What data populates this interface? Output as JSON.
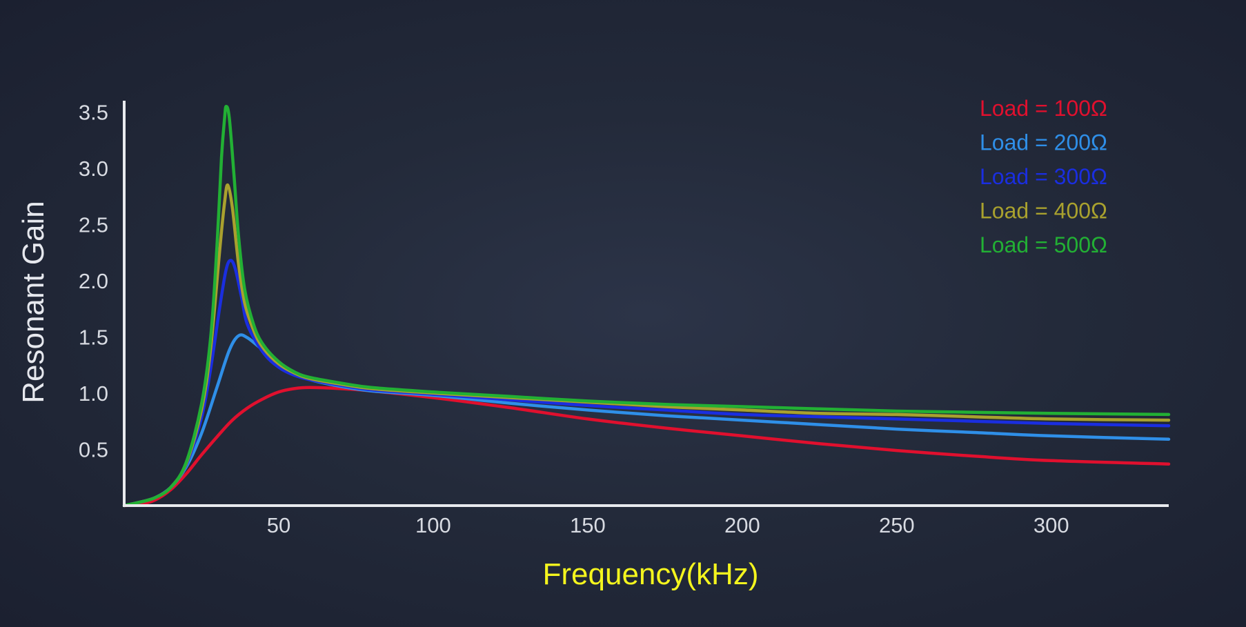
{
  "chart_data": {
    "type": "line",
    "title": "",
    "xlabel": "Frequency(kHz)",
    "ylabel": "Resonant Gain",
    "xlim": [
      0,
      338
    ],
    "ylim": [
      0,
      3.6
    ],
    "xticks": [
      50,
      100,
      150,
      200,
      250,
      300
    ],
    "yticks": [
      0.5,
      1.0,
      1.5,
      2.0,
      2.5,
      3.0,
      3.5
    ],
    "xtick_labels": [
      "50",
      "100",
      "150",
      "200",
      "250",
      "300"
    ],
    "ytick_labels": [
      "0.5",
      "1.0",
      "1.5",
      "2.0",
      "2.5",
      "3.0",
      "3.5"
    ],
    "grid": false,
    "legend_position": "top-right",
    "colors": {
      "background": "#232a3a",
      "axis": "#e8eaee",
      "xlabel": "#f4f51e",
      "ticks": "#d8dbe2"
    },
    "series": [
      {
        "name": "Load = 100Ω",
        "color": "#e0102e",
        "x": [
          0,
          5,
          10,
          15,
          20,
          25,
          30,
          35,
          40,
          45,
          50,
          55,
          60,
          70,
          80,
          100,
          125,
          150,
          175,
          200,
          225,
          250,
          275,
          300,
          338
        ],
        "y": [
          0.0,
          0.01,
          0.05,
          0.14,
          0.28,
          0.45,
          0.61,
          0.76,
          0.87,
          0.95,
          1.01,
          1.04,
          1.05,
          1.04,
          1.02,
          0.96,
          0.87,
          0.77,
          0.69,
          0.62,
          0.55,
          0.49,
          0.44,
          0.4,
          0.37
        ]
      },
      {
        "name": "Load = 200Ω",
        "color": "#2f8fe8",
        "x": [
          0,
          5,
          10,
          15,
          20,
          25,
          30,
          34,
          37,
          40,
          45,
          50,
          55,
          60,
          70,
          80,
          100,
          125,
          150,
          175,
          200,
          225,
          250,
          275,
          300,
          338
        ],
        "y": [
          0.0,
          0.03,
          0.07,
          0.16,
          0.34,
          0.64,
          1.05,
          1.38,
          1.51,
          1.49,
          1.38,
          1.27,
          1.18,
          1.12,
          1.06,
          1.02,
          0.98,
          0.91,
          0.85,
          0.8,
          0.76,
          0.72,
          0.68,
          0.65,
          0.62,
          0.59
        ]
      },
      {
        "name": "Load = 300Ω",
        "color": "#1a2ee0",
        "x": [
          0,
          5,
          10,
          15,
          20,
          25,
          28,
          31,
          33,
          34.5,
          36,
          38,
          40,
          45,
          50,
          55,
          60,
          70,
          80,
          100,
          125,
          150,
          175,
          200,
          225,
          250,
          275,
          300,
          338
        ],
        "y": [
          0.0,
          0.03,
          0.07,
          0.16,
          0.36,
          0.78,
          1.22,
          1.78,
          2.1,
          2.18,
          2.1,
          1.85,
          1.6,
          1.36,
          1.23,
          1.16,
          1.12,
          1.07,
          1.03,
          0.99,
          0.94,
          0.89,
          0.85,
          0.81,
          0.79,
          0.77,
          0.75,
          0.73,
          0.71
        ]
      },
      {
        "name": "Load = 400Ω",
        "color": "#a9a12e",
        "x": [
          0,
          5,
          10,
          15,
          20,
          25,
          28,
          31,
          32.5,
          33.5,
          35,
          37,
          39,
          42,
          45,
          50,
          55,
          60,
          70,
          80,
          100,
          125,
          150,
          175,
          200,
          225,
          250,
          275,
          300,
          338
        ],
        "y": [
          0.0,
          0.03,
          0.07,
          0.16,
          0.37,
          0.85,
          1.4,
          2.3,
          2.7,
          2.85,
          2.65,
          2.15,
          1.8,
          1.55,
          1.4,
          1.26,
          1.18,
          1.13,
          1.08,
          1.04,
          1.0,
          0.96,
          0.92,
          0.88,
          0.85,
          0.82,
          0.81,
          0.79,
          0.77,
          0.76
        ]
      },
      {
        "name": "Load = 500Ω",
        "color": "#22b034",
        "x": [
          0,
          5,
          10,
          15,
          20,
          25,
          28,
          30,
          31.5,
          32.5,
          33,
          34,
          35.5,
          37,
          39,
          42,
          45,
          50,
          55,
          60,
          70,
          80,
          100,
          125,
          150,
          175,
          200,
          225,
          250,
          275,
          300,
          338
        ],
        "y": [
          0.0,
          0.03,
          0.07,
          0.16,
          0.38,
          0.9,
          1.5,
          2.3,
          3.1,
          3.45,
          3.55,
          3.45,
          2.95,
          2.4,
          1.92,
          1.6,
          1.43,
          1.28,
          1.19,
          1.14,
          1.09,
          1.05,
          1.01,
          0.97,
          0.93,
          0.9,
          0.88,
          0.86,
          0.84,
          0.83,
          0.82,
          0.81
        ]
      }
    ]
  }
}
